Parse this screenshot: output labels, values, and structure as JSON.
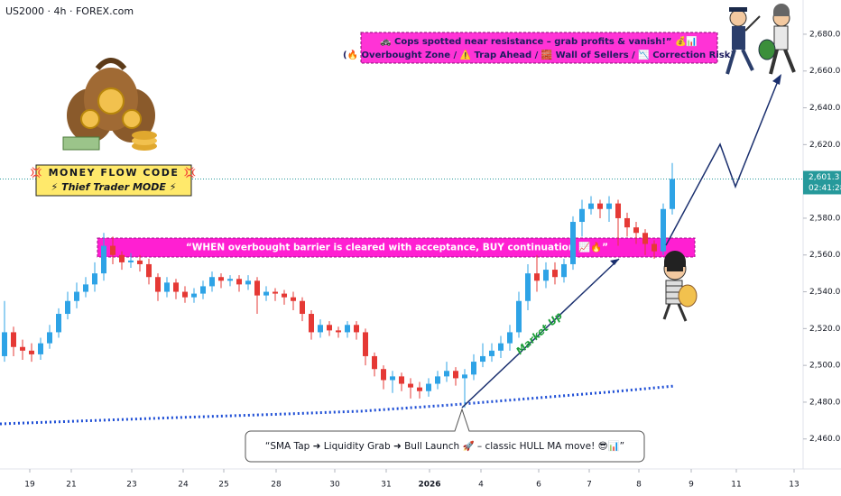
{
  "chart_data": {
    "type": "candlestick",
    "symbol": "US2000 · 4h · FOREX.com",
    "open": [
      2505,
      2518,
      2510,
      2508,
      2506,
      2512,
      2518,
      2528,
      2535,
      2540,
      2544,
      2550,
      2565,
      2560,
      2556,
      2557,
      2555,
      2548,
      2540,
      2545,
      2540,
      2537,
      2539,
      2543,
      2548,
      2546,
      2547,
      2544,
      2546,
      2538,
      2540,
      2539,
      2537,
      2535,
      2528,
      2518,
      2522,
      2519,
      2518,
      2522,
      2518,
      2505,
      2498,
      2492,
      2494,
      2490,
      2488,
      2486,
      2490,
      2494,
      2497,
      2493,
      2495,
      2502,
      2505,
      2508,
      2512,
      2518,
      2535,
      2550,
      2546,
      2552,
      2548,
      2555,
      2578,
      2585,
      2588,
      2585,
      2588,
      2580,
      2575,
      2572,
      2566,
      2562,
      2585
    ],
    "high": [
      2535,
      2521,
      2514,
      2512,
      2515,
      2522,
      2531,
      2540,
      2545,
      2548,
      2556,
      2572,
      2570,
      2562,
      2561,
      2560,
      2558,
      2550,
      2548,
      2547,
      2543,
      2542,
      2546,
      2551,
      2550,
      2549,
      2549,
      2549,
      2548,
      2543,
      2542,
      2541,
      2540,
      2537,
      2530,
      2525,
      2524,
      2521,
      2524,
      2524,
      2520,
      2507,
      2500,
      2497,
      2496,
      2493,
      2491,
      2493,
      2497,
      2502,
      2499,
      2498,
      2506,
      2512,
      2512,
      2516,
      2522,
      2540,
      2555,
      2560,
      2556,
      2556,
      2558,
      2581,
      2590,
      2592,
      2590,
      2592,
      2590,
      2583,
      2578,
      2574,
      2568,
      2588,
      2610
    ],
    "low": [
      2502,
      2505,
      2503,
      2502,
      2503,
      2509,
      2515,
      2525,
      2531,
      2537,
      2540,
      2546,
      2555,
      2552,
      2553,
      2551,
      2544,
      2535,
      2537,
      2536,
      2534,
      2534,
      2536,
      2540,
      2542,
      2543,
      2540,
      2541,
      2528,
      2535,
      2535,
      2533,
      2530,
      2524,
      2514,
      2515,
      2516,
      2515,
      2515,
      2514,
      2500,
      2494,
      2487,
      2485,
      2486,
      2482,
      2482,
      2483,
      2487,
      2491,
      2489,
      2477,
      2492,
      2499,
      2502,
      2504,
      2508,
      2515,
      2530,
      2540,
      2542,
      2544,
      2545,
      2552,
      2570,
      2582,
      2580,
      2578,
      2565,
      2570,
      2566,
      2560,
      2558,
      2560,
      2582
    ],
    "close": [
      2518,
      2510,
      2508,
      2506,
      2512,
      2518,
      2528,
      2535,
      2540,
      2544,
      2550,
      2565,
      2560,
      2556,
      2557,
      2555,
      2548,
      2540,
      2545,
      2540,
      2537,
      2539,
      2543,
      2548,
      2546,
      2547,
      2544,
      2546,
      2538,
      2540,
      2539,
      2537,
      2535,
      2528,
      2518,
      2522,
      2519,
      2518,
      2522,
      2518,
      2505,
      2498,
      2492,
      2494,
      2490,
      2488,
      2486,
      2490,
      2494,
      2497,
      2493,
      2495,
      2502,
      2505,
      2508,
      2512,
      2518,
      2535,
      2550,
      2546,
      2552,
      2548,
      2555,
      2578,
      2585,
      2588,
      2585,
      2588,
      2580,
      2575,
      2572,
      2566,
      2562,
      2585,
      2601.3
    ],
    "up_color": "#2ea3e6",
    "down_color": "#e53935",
    "xlim": [
      -0.5,
      88.5
    ],
    "xticks": [
      {
        "value": 2.8,
        "label": "19"
      },
      {
        "value": 7.4,
        "label": "21"
      },
      {
        "value": 14.1,
        "label": "23"
      },
      {
        "value": 19.8,
        "label": "24"
      },
      {
        "value": 24.3,
        "label": "25"
      },
      {
        "value": 30.1,
        "label": "28"
      },
      {
        "value": 36.6,
        "label": "30"
      },
      {
        "value": 42.3,
        "label": "31"
      },
      {
        "value": 47.1,
        "label": "2026"
      },
      {
        "value": 52.8,
        "label": "4"
      },
      {
        "value": 59.2,
        "label": "6"
      },
      {
        "value": 64.8,
        "label": "7"
      },
      {
        "value": 70.3,
        "label": "8"
      },
      {
        "value": 76.1,
        "label": "9"
      },
      {
        "value": 81.1,
        "label": "11"
      },
      {
        "value": 87.5,
        "label": "13"
      }
    ],
    "ylim": [
      2443.7,
      2698.6
    ],
    "yticks": [
      {
        "value": 2680,
        "label": "2,680.0"
      },
      {
        "value": 2660,
        "label": "2,660.0"
      },
      {
        "value": 2640,
        "label": "2,640.0"
      },
      {
        "value": 2620,
        "label": "2,620.0"
      },
      {
        "value": 2580,
        "label": "2,580.0"
      },
      {
        "value": 2560,
        "label": "2,560.0"
      },
      {
        "value": 2540,
        "label": "2,540.0"
      },
      {
        "value": 2520,
        "label": "2,520.0"
      },
      {
        "value": 2500,
        "label": "2,500.0"
      },
      {
        "value": 2480,
        "label": "2,480.0"
      },
      {
        "value": 2460,
        "label": "2,460.0"
      }
    ],
    "hull_ma": {
      "color": "#1f4fd6",
      "x": [
        -0.5,
        19.5,
        29.5,
        39.5,
        49.5,
        59.5,
        67,
        74.3
      ],
      "values": [
        2468.2,
        2471.7,
        2473.3,
        2475.1,
        2478.5,
        2482.5,
        2485.5,
        2488.8
      ]
    },
    "zone": {
      "low": 2558.9,
      "high": 2569.2,
      "color": "#ff1fd2",
      "label": "“WHEN overbought barrier is cleared with acceptance, BUY continuation 📈🔥”"
    },
    "last_price": {
      "value": 2601.3,
      "label": "2,601.3",
      "countdown": "02:41:28",
      "color": "#26999b"
    },
    "annotations": {
      "badge_line1": "💢 MONEY FLOW CODE 💢",
      "badge_line2": "⚡ Thief Trader MODE ⚡",
      "top_line1": "🚓 Cops spotted near resistance – grab profits & vanish!” 💰📊",
      "top_line2": "(🔥 Overbought Zone / ⚠️ Trap Ahead / 🧱 Wall of Sellers / 📉 Correction Risk)",
      "bubble": "“SMA Tap ➜ Liquidity Grab ➜ Bull Launch 🚀 – classic HULL MA move! 😎📊”",
      "market_up": "Market Up"
    }
  }
}
